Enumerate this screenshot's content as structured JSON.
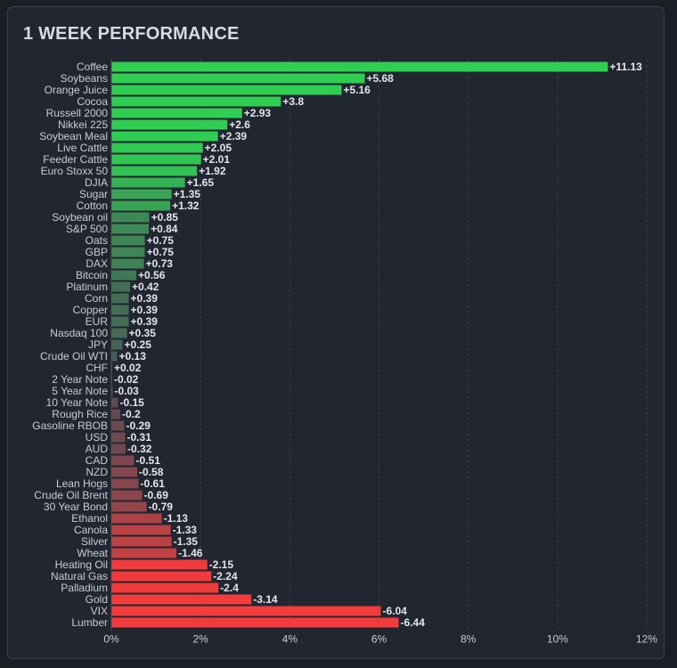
{
  "title": "1 WEEK PERFORMANCE",
  "chart_data": {
    "type": "bar",
    "orientation": "horizontal",
    "title": "1 WEEK PERFORMANCE",
    "xlabel": "",
    "ylabel": "",
    "xlim": [
      0,
      12
    ],
    "x_ticks": [
      "0%",
      "2%",
      "4%",
      "6%",
      "8%",
      "10%",
      "12%"
    ],
    "grid": "vertical dashed",
    "colors": {
      "positive": "#2fce53",
      "negative": "#f23b3b",
      "neutral": "#4a4d56"
    },
    "categories": [
      "Coffee",
      "Soybeans",
      "Orange Juice",
      "Cocoa",
      "Russell 2000",
      "Nikkei 225",
      "Soybean Meal",
      "Live Cattle",
      "Feeder Cattle",
      "Euro Stoxx 50",
      "DJIA",
      "Sugar",
      "Cotton",
      "Soybean oil",
      "S&P 500",
      "Oats",
      "GBP",
      "DAX",
      "Bitcoin",
      "Platinum",
      "Corn",
      "Copper",
      "EUR",
      "Nasdaq 100",
      "JPY",
      "Crude Oil WTI",
      "CHF",
      "2 Year Note",
      "5 Year Note",
      "10 Year Note",
      "Rough Rice",
      "Gasoline RBOB",
      "USD",
      "AUD",
      "CAD",
      "NZD",
      "Lean Hogs",
      "Crude Oil Brent",
      "30 Year Bond",
      "Ethanol",
      "Canola",
      "Silver",
      "Wheat",
      "Heating Oil",
      "Natural Gas",
      "Palladium",
      "Gold",
      "VIX",
      "Lumber"
    ],
    "values": [
      11.13,
      5.68,
      5.16,
      3.8,
      2.93,
      2.6,
      2.39,
      2.05,
      2.01,
      1.92,
      1.65,
      1.35,
      1.32,
      0.85,
      0.84,
      0.75,
      0.75,
      0.73,
      0.56,
      0.42,
      0.39,
      0.39,
      0.39,
      0.35,
      0.25,
      0.13,
      0.02,
      -0.02,
      -0.03,
      -0.15,
      -0.2,
      -0.29,
      -0.31,
      -0.32,
      -0.51,
      -0.58,
      -0.61,
      -0.69,
      -0.79,
      -1.13,
      -1.33,
      -1.35,
      -1.46,
      -2.15,
      -2.24,
      -2.4,
      -3.14,
      -6.04,
      -6.44
    ],
    "value_labels": [
      "+11.13",
      "+5.68",
      "+5.16",
      "+3.8",
      "+2.93",
      "+2.6",
      "+2.39",
      "+2.05",
      "+2.01",
      "+1.92",
      "+1.65",
      "+1.35",
      "+1.32",
      "+0.85",
      "+0.84",
      "+0.75",
      "+0.75",
      "+0.73",
      "+0.56",
      "+0.42",
      "+0.39",
      "+0.39",
      "+0.39",
      "+0.35",
      "+0.25",
      "+0.13",
      "+0.02",
      "-0.02",
      "-0.03",
      "-0.15",
      "-0.2",
      "-0.29",
      "-0.31",
      "-0.32",
      "-0.51",
      "-0.58",
      "-0.61",
      "-0.69",
      "-0.79",
      "-1.13",
      "-1.33",
      "-1.35",
      "-1.46",
      "-2.15",
      "-2.24",
      "-2.4",
      "-3.14",
      "-6.04",
      "-6.44"
    ]
  }
}
